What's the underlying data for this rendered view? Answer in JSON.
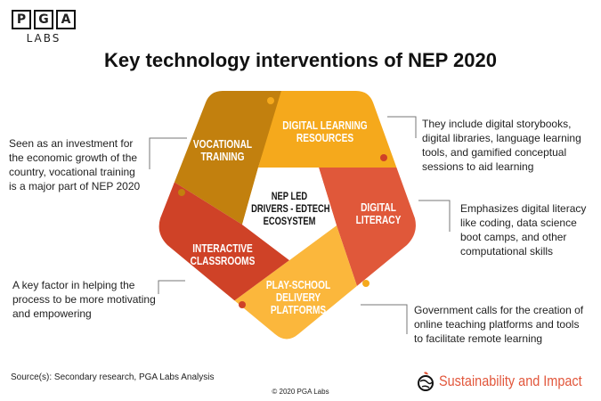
{
  "logo": {
    "letters": [
      "P",
      "G",
      "A"
    ],
    "sub": "LABS"
  },
  "title": "Key technology interventions of NEP 2020",
  "center": [
    "NEP LED",
    "DRIVERS - EDTECH",
    "ECOSYSTEM"
  ],
  "segments": [
    {
      "name": "vocational",
      "lines": [
        "VOCATIONAL",
        "TRAINING"
      ],
      "color": "#c2800e",
      "desc": [
        "Seen as an investment for",
        "the economic growth of the",
        "country, vocational training",
        "is a major part of NEP 2020"
      ]
    },
    {
      "name": "digital-learning",
      "lines": [
        "DIGITAL LEARNING",
        "RESOURCES"
      ],
      "color": "#f5a91c",
      "desc": [
        "They include digital storybooks,",
        "digital libraries, language learning",
        "tools, and gamified conceptual",
        "sessions to aid learning"
      ]
    },
    {
      "name": "digital-literacy",
      "lines": [
        "DIGITAL",
        "LITERACY"
      ],
      "color": "#e0583a",
      "desc": [
        "Emphasizes digital literacy",
        "like coding, data science",
        "boot camps, and other",
        "computational skills"
      ]
    },
    {
      "name": "play-school",
      "lines": [
        "PLAY-SCHOOL",
        "DELIVERY",
        "PLATFORMS"
      ],
      "color": "#fbb73c",
      "desc": [
        "Government calls for the creation of",
        "online teaching platforms and tools",
        "to facilitate remote learning"
      ]
    },
    {
      "name": "interactive",
      "lines": [
        "INTERACTIVE",
        "CLASSROOMS"
      ],
      "color": "#cf4227",
      "desc": [
        "A key factor in helping the",
        "process to be more motivating",
        "and empowering"
      ]
    }
  ],
  "source": "Source(s): Secondary research, PGA Labs Analysis",
  "copyright": "© 2020 PGA Labs",
  "brand": "Sustainability and Impact"
}
